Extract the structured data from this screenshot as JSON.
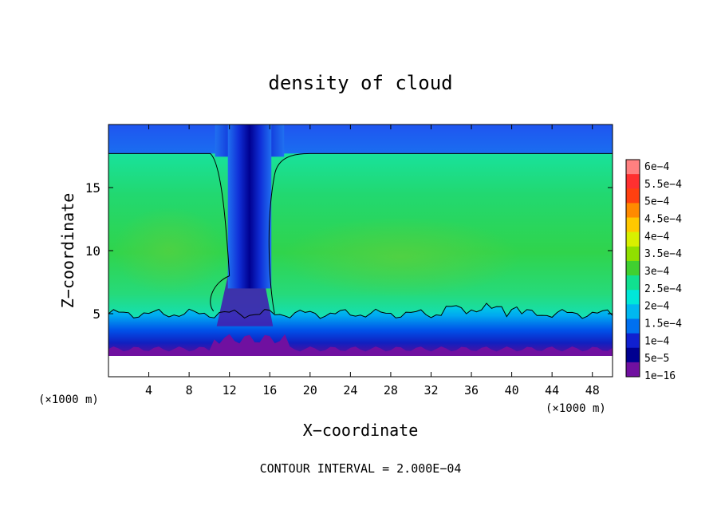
{
  "chart_data": {
    "type": "heatmap",
    "title": "density of cloud",
    "xlabel": "X−coordinate",
    "ylabel": "Z−coordinate",
    "x_unit": "(×1000 m)",
    "x_unit_right": "(×1000 m)",
    "xlim": [
      0,
      50
    ],
    "ylim": [
      0,
      20
    ],
    "x_ticks": [
      4,
      8,
      12,
      16,
      20,
      24,
      28,
      32,
      36,
      40,
      44,
      48
    ],
    "y_ticks": [
      5,
      10,
      15
    ],
    "footer": "CONTOUR INTERVAL = 2.000E−04",
    "colorbar": {
      "labels": [
        "6e−4",
        "5.5e−4",
        "5e−4",
        "4.5e−4",
        "4e−4",
        "3.5e−4",
        "3e−4",
        "2.5e−4",
        "2e−4",
        "1.5e−4",
        "1e−4",
        "5e−5",
        "1e−16"
      ],
      "colors": [
        "#ff8080",
        "#ff3030",
        "#ff4010",
        "#ff8a00",
        "#ffc800",
        "#d8f000",
        "#90e000",
        "#40d030",
        "#10e090",
        "#00e8d8",
        "#00b8f0",
        "#0070f0",
        "#1020d0",
        "#000090",
        "#7010a0"
      ]
    },
    "cloud_top_z": 17.7,
    "cloud_base_z": 5.0,
    "clear_column_x": [
      12,
      16
    ],
    "grid_lines": false,
    "legend_position": "right"
  }
}
